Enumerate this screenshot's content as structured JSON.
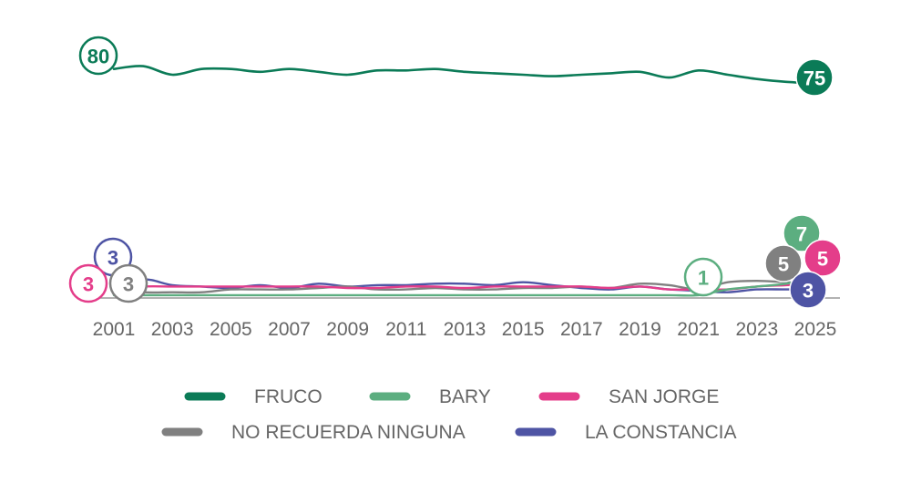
{
  "chart_data": {
    "type": "line",
    "title": "",
    "xlabel": "",
    "ylabel": "",
    "ylim": [
      0,
      85
    ],
    "x": [
      2001,
      2002,
      2003,
      2004,
      2005,
      2006,
      2007,
      2008,
      2009,
      2010,
      2011,
      2012,
      2013,
      2014,
      2015,
      2016,
      2017,
      2018,
      2019,
      2020,
      2021,
      2022,
      2023,
      2024,
      2025
    ],
    "x_tick_labels": [
      "2001",
      "2003",
      "2005",
      "2007",
      "2009",
      "2011",
      "2013",
      "2015",
      "2017",
      "2019",
      "2021",
      "2023",
      "2025"
    ],
    "legend_placement": "bottom",
    "series": [
      {
        "name": "FRUCO",
        "color": "#0b7b57",
        "values": [
          80,
          81,
          78,
          80,
          80,
          79,
          80,
          79,
          78,
          79.5,
          79.5,
          80,
          79,
          78.5,
          78,
          77.5,
          78,
          78.5,
          79,
          77,
          79.5,
          78,
          76.5,
          75.5,
          75
        ],
        "start_label": "80",
        "end_label": "75",
        "start_year": 2001,
        "end_year": 2025,
        "start_style": "outline",
        "end_style": "filled"
      },
      {
        "name": "BARY",
        "color": "#5cae80",
        "values": [
          1,
          1,
          1,
          1,
          1,
          1,
          1,
          1,
          1,
          1,
          1,
          1,
          1,
          1,
          1,
          1,
          1,
          1,
          1,
          1,
          1,
          3,
          4,
          5,
          7
        ],
        "start_label": "1",
        "end_label": "7",
        "start_year": 2021,
        "end_year": 2025,
        "start_style": "outline",
        "end_style": "filled"
      },
      {
        "name": "SAN JORGE",
        "color": "#e43d8a",
        "values": [
          3,
          4,
          4,
          4,
          4,
          4,
          4,
          4,
          3.5,
          3.5,
          4,
          4,
          3.5,
          4,
          4,
          4,
          4,
          3.5,
          4,
          3,
          3,
          3,
          4,
          4.5,
          5
        ],
        "start_label": "3",
        "end_label": "5",
        "start_year": 2001,
        "end_year": 2025,
        "start_style": "outline",
        "end_style": "filled"
      },
      {
        "name": "NO RECUERDA NINGUNA",
        "color": "#808080",
        "values": [
          3,
          2,
          2,
          2,
          3,
          3,
          3,
          3.5,
          4,
          3,
          3,
          3.5,
          3,
          3,
          3.5,
          3.5,
          4,
          3.5,
          5,
          4.5,
          3,
          5.5,
          6,
          5.5,
          5
        ],
        "start_label": "3",
        "end_label": "5",
        "start_year": 2001,
        "end_year": 2025,
        "start_style": "outline",
        "end_style": "filled"
      },
      {
        "name": "LA CONSTANCIA",
        "color": "#4e54a4",
        "values": [
          3,
          6.5,
          4.5,
          4,
          3.5,
          4.5,
          3.5,
          5,
          4,
          4.5,
          4.5,
          5,
          5,
          4.5,
          5.5,
          4.5,
          3.5,
          3,
          4,
          3,
          2.5,
          2,
          3,
          3,
          3
        ],
        "start_label": "3",
        "end_label": "3",
        "start_year": 2001,
        "end_year": 2025,
        "start_style": "outline",
        "end_style": "filled"
      }
    ]
  }
}
